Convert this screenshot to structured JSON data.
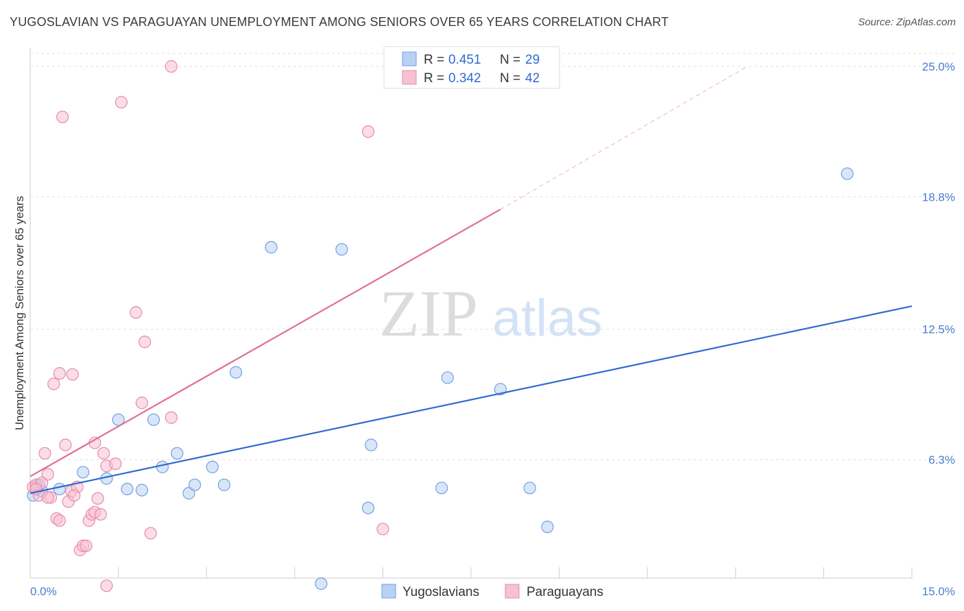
{
  "header": {
    "title": "YUGOSLAVIAN VS PARAGUAYAN UNEMPLOYMENT AMONG SENIORS OVER 65 YEARS CORRELATION CHART",
    "source": "Source: ZipAtlas.com"
  },
  "watermark": {
    "zip": "ZIP",
    "atlas": "atlas"
  },
  "chart_data": {
    "type": "scatter",
    "ylabel": "Unemployment Among Seniors over 65 years",
    "xlabel": "",
    "xlim": [
      0,
      15
    ],
    "ylim": [
      0,
      25.5
    ],
    "x_tick_labels": [
      "0.0%",
      "15.0%"
    ],
    "y_ticks": [
      6.3,
      12.5,
      18.8,
      25.0
    ],
    "y_tick_labels": [
      "6.3%",
      "12.5%",
      "18.8%",
      "25.0%"
    ],
    "grid": true,
    "legend": {
      "position": "top-center",
      "entries": [
        {
          "r_label": "R = ",
          "r": "0.451",
          "n_label": "N = ",
          "n": "29"
        },
        {
          "r_label": "R = ",
          "r": "0.342",
          "n_label": "N = ",
          "n": "42"
        }
      ]
    },
    "series": [
      {
        "name": "Yugoslavians",
        "color": "#6f9fe6",
        "fill": "#b9d1f3",
        "line_color": "#2f6ad0",
        "trend": {
          "x0": 0.0,
          "y0": 4.7,
          "x1": 15.0,
          "y1": 13.6
        },
        "points": [
          [
            0.05,
            4.6
          ],
          [
            0.1,
            5.0
          ],
          [
            0.2,
            4.8
          ],
          [
            0.5,
            4.9
          ],
          [
            0.9,
            5.7
          ],
          [
            1.3,
            5.4
          ],
          [
            1.5,
            8.2
          ],
          [
            1.65,
            4.9
          ],
          [
            1.9,
            4.85
          ],
          [
            2.1,
            8.2
          ],
          [
            2.25,
            5.95
          ],
          [
            2.5,
            6.6
          ],
          [
            2.7,
            4.7
          ],
          [
            2.8,
            5.1
          ],
          [
            3.1,
            5.95
          ],
          [
            3.3,
            5.1
          ],
          [
            3.5,
            10.45
          ],
          [
            4.1,
            16.4
          ],
          [
            4.95,
            0.4
          ],
          [
            5.3,
            16.3
          ],
          [
            5.75,
            4.0
          ],
          [
            5.8,
            7.0
          ],
          [
            7.0,
            4.95
          ],
          [
            7.1,
            10.2
          ],
          [
            8.0,
            9.65
          ],
          [
            8.5,
            4.95
          ],
          [
            8.8,
            3.1
          ],
          [
            13.9,
            19.9
          ],
          [
            0.15,
            5.1
          ]
        ]
      },
      {
        "name": "Paraguayans",
        "color": "#e88aa8",
        "fill": "#f6c1d2",
        "line_color": "#e06d95",
        "trend": {
          "x0": 0.0,
          "y0": 5.5,
          "x1": 8.0,
          "y1": 18.2
        },
        "trend_ext": {
          "x0": 8.0,
          "y0": 18.2,
          "x1": 12.2,
          "y1": 25.0
        },
        "points": [
          [
            0.05,
            5.0
          ],
          [
            0.1,
            5.1
          ],
          [
            0.15,
            4.6
          ],
          [
            0.2,
            5.2
          ],
          [
            0.25,
            6.6
          ],
          [
            0.3,
            5.6
          ],
          [
            0.35,
            4.5
          ],
          [
            0.4,
            9.9
          ],
          [
            0.45,
            3.5
          ],
          [
            0.5,
            3.4
          ],
          [
            0.5,
            10.4
          ],
          [
            0.55,
            22.6
          ],
          [
            0.6,
            7.0
          ],
          [
            0.65,
            4.3
          ],
          [
            0.7,
            4.8
          ],
          [
            0.72,
            10.35
          ],
          [
            0.8,
            5.0
          ],
          [
            0.85,
            2.0
          ],
          [
            0.9,
            2.2
          ],
          [
            0.95,
            2.2
          ],
          [
            1.0,
            3.4
          ],
          [
            1.05,
            3.7
          ],
          [
            1.1,
            3.8
          ],
          [
            1.1,
            7.1
          ],
          [
            1.15,
            4.45
          ],
          [
            1.2,
            3.7
          ],
          [
            1.25,
            6.6
          ],
          [
            1.3,
            6.0
          ],
          [
            1.3,
            0.3
          ],
          [
            1.45,
            6.1
          ],
          [
            1.55,
            23.3
          ],
          [
            1.8,
            13.3
          ],
          [
            1.9,
            9.0
          ],
          [
            1.95,
            11.9
          ],
          [
            2.05,
            2.8
          ],
          [
            2.4,
            25.0
          ],
          [
            2.4,
            8.3
          ],
          [
            5.75,
            21.9
          ],
          [
            6.0,
            3.0
          ],
          [
            0.3,
            4.5
          ],
          [
            0.75,
            4.6
          ],
          [
            0.1,
            4.9
          ]
        ]
      }
    ]
  }
}
